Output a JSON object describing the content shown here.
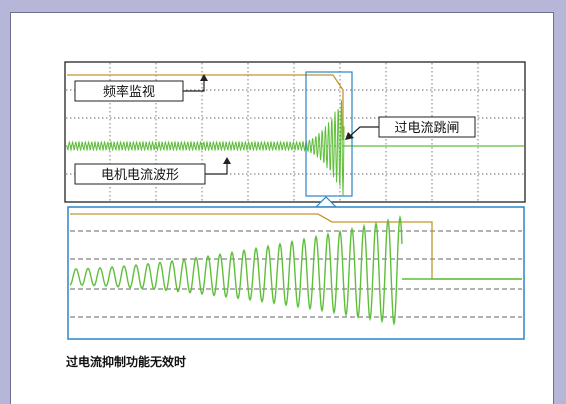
{
  "labels": {
    "frequency_monitor": "频率监视",
    "overcurrent_trip": "过电流跳闸",
    "motor_current_waveform": "电机电流波形"
  },
  "caption": "过电流抑制功能无效时",
  "colors": {
    "background": "#b6b6d8",
    "panel": "#ffffff",
    "frequency_trace": "#c7952d",
    "current_waveform": "#5fbf3a",
    "zoom_box": "#2a85c8"
  }
}
